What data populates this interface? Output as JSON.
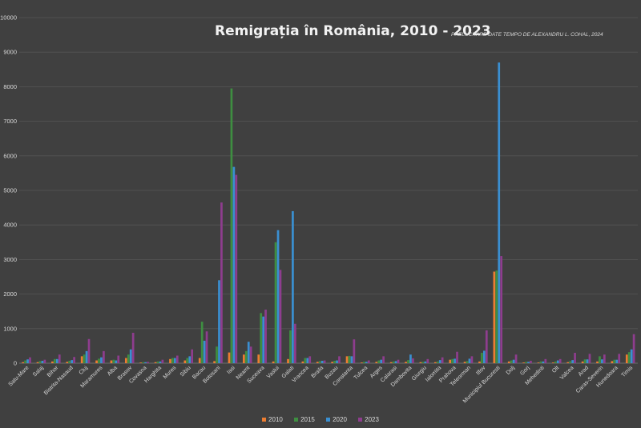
{
  "chart_data": {
    "type": "bar",
    "title": "Remigrația în România, 2010 - 2023",
    "subtitle": "PRELUCRARE DATE TEMPO DE ALEXANDRU L. COHAL, 2024",
    "xlabel": "",
    "ylabel": "",
    "ylim": [
      0,
      10000
    ],
    "yticks": [
      0,
      1000,
      2000,
      3000,
      4000,
      5000,
      6000,
      7000,
      8000,
      9000,
      10000
    ],
    "grid": true,
    "legend_position": "bottom",
    "categories": [
      "Satu-Mare",
      "Salaj",
      "Bihor",
      "Bistrita-Nasaud",
      "Cluj",
      "Maramures",
      "Alba",
      "Brasov",
      "Covasna",
      "Harghita",
      "Mures",
      "Sibiu",
      "Bacau",
      "Botosani",
      "Iasi",
      "Neamt",
      "Suceava",
      "Vaslui",
      "Galati",
      "Vrancea",
      "Braila",
      "Buzau",
      "Constanta",
      "Tulcea",
      "Arges",
      "Calarasi",
      "Dambovita",
      "Giurgiu",
      "Ialomita",
      "Prahova",
      "Teleorman",
      "Ilfov",
      "Municipiul Bucuresti",
      "Dolj",
      "Gorj",
      "Mehedinti",
      "Olt",
      "Valcea",
      "Arad",
      "Caras-Severin",
      "Hunedoara",
      "Timis"
    ],
    "series": [
      {
        "name": "2010",
        "color": "#ed7d31",
        "values": [
          30,
          30,
          50,
          40,
          200,
          80,
          80,
          150,
          20,
          30,
          120,
          80,
          150,
          60,
          310,
          250,
          250,
          50,
          120,
          50,
          40,
          40,
          200,
          20,
          40,
          30,
          40,
          30,
          30,
          100,
          40,
          50,
          2650,
          50,
          20,
          20,
          20,
          30,
          50,
          50,
          60,
          250
        ]
      },
      {
        "name": "2015",
        "color": "#3e8e41",
        "values": [
          80,
          60,
          120,
          70,
          250,
          130,
          100,
          250,
          30,
          50,
          150,
          150,
          1200,
          480,
          7950,
          350,
          1450,
          3500,
          950,
          150,
          60,
          70,
          210,
          40,
          80,
          50,
          90,
          40,
          50,
          120,
          60,
          300,
          2680,
          80,
          40,
          50,
          50,
          60,
          110,
          200,
          100,
          320
        ]
      },
      {
        "name": "2020",
        "color": "#3a8fd1",
        "values": [
          110,
          70,
          120,
          90,
          350,
          170,
          80,
          400,
          30,
          50,
          150,
          200,
          650,
          2400,
          5680,
          620,
          1350,
          3850,
          4400,
          150,
          70,
          80,
          200,
          40,
          100,
          60,
          250,
          50,
          90,
          130,
          130,
          360,
          8700,
          100,
          40,
          50,
          80,
          90,
          110,
          110,
          100,
          400
        ]
      },
      {
        "name": "2023",
        "color": "#8e3d8e",
        "values": [
          170,
          100,
          250,
          180,
          700,
          350,
          220,
          880,
          40,
          100,
          220,
          400,
          920,
          4650,
          5450,
          480,
          1550,
          2700,
          1140,
          200,
          80,
          200,
          690,
          80,
          200,
          100,
          140,
          120,
          170,
          330,
          200,
          950,
          3100,
          250,
          70,
          120,
          120,
          300,
          270,
          250,
          270,
          840
        ]
      }
    ]
  }
}
